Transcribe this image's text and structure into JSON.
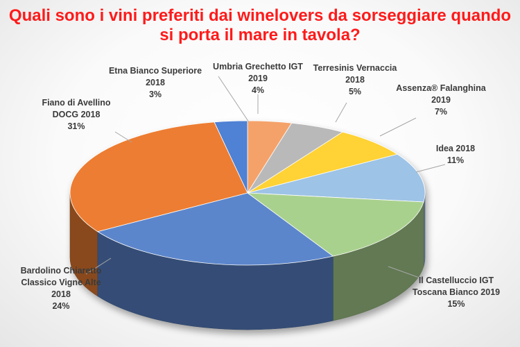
{
  "chart_data": {
    "type": "pie",
    "title_lines": [
      "Quali sono i vini preferiti dai winelovers da sorseggiare quando",
      "si porta il mare in tavola?"
    ],
    "slices": [
      {
        "label_lines": [
          "Umbria Grechetto IGT",
          "2019"
        ],
        "value": 4,
        "value_label": "4%",
        "color": "#f4a26a"
      },
      {
        "label_lines": [
          "Terresinis Vernaccia",
          "2018"
        ],
        "value": 5,
        "value_label": "5%",
        "color": "#b9b9b9"
      },
      {
        "label_lines": [
          "Assenza® Falanghina",
          "2019"
        ],
        "value": 7,
        "value_label": "7%",
        "color": "#ffd235"
      },
      {
        "label_lines": [
          "Idea 2018"
        ],
        "value": 11,
        "value_label": "11%",
        "color": "#9dc3e6"
      },
      {
        "label_lines": [
          "Il Castelluccio IGT",
          "Toscana Bianco 2019"
        ],
        "value": 15,
        "value_label": "15%",
        "color": "#a9d18e"
      },
      {
        "label_lines": [
          "Bardolino Chiaretto",
          "Classico Vigne Alte",
          "2018"
        ],
        "value": 24,
        "value_label": "24%",
        "color": "#5b86cc"
      },
      {
        "label_lines": [
          "Fiano di Avellino",
          "DOCG 2018"
        ],
        "value": 31,
        "value_label": "31%",
        "color": "#ed7d31"
      },
      {
        "label_lines": [
          "Etna Bianco Superiore",
          "2018"
        ],
        "value": 3,
        "value_label": "3%",
        "color": "#4f81d4"
      }
    ]
  }
}
